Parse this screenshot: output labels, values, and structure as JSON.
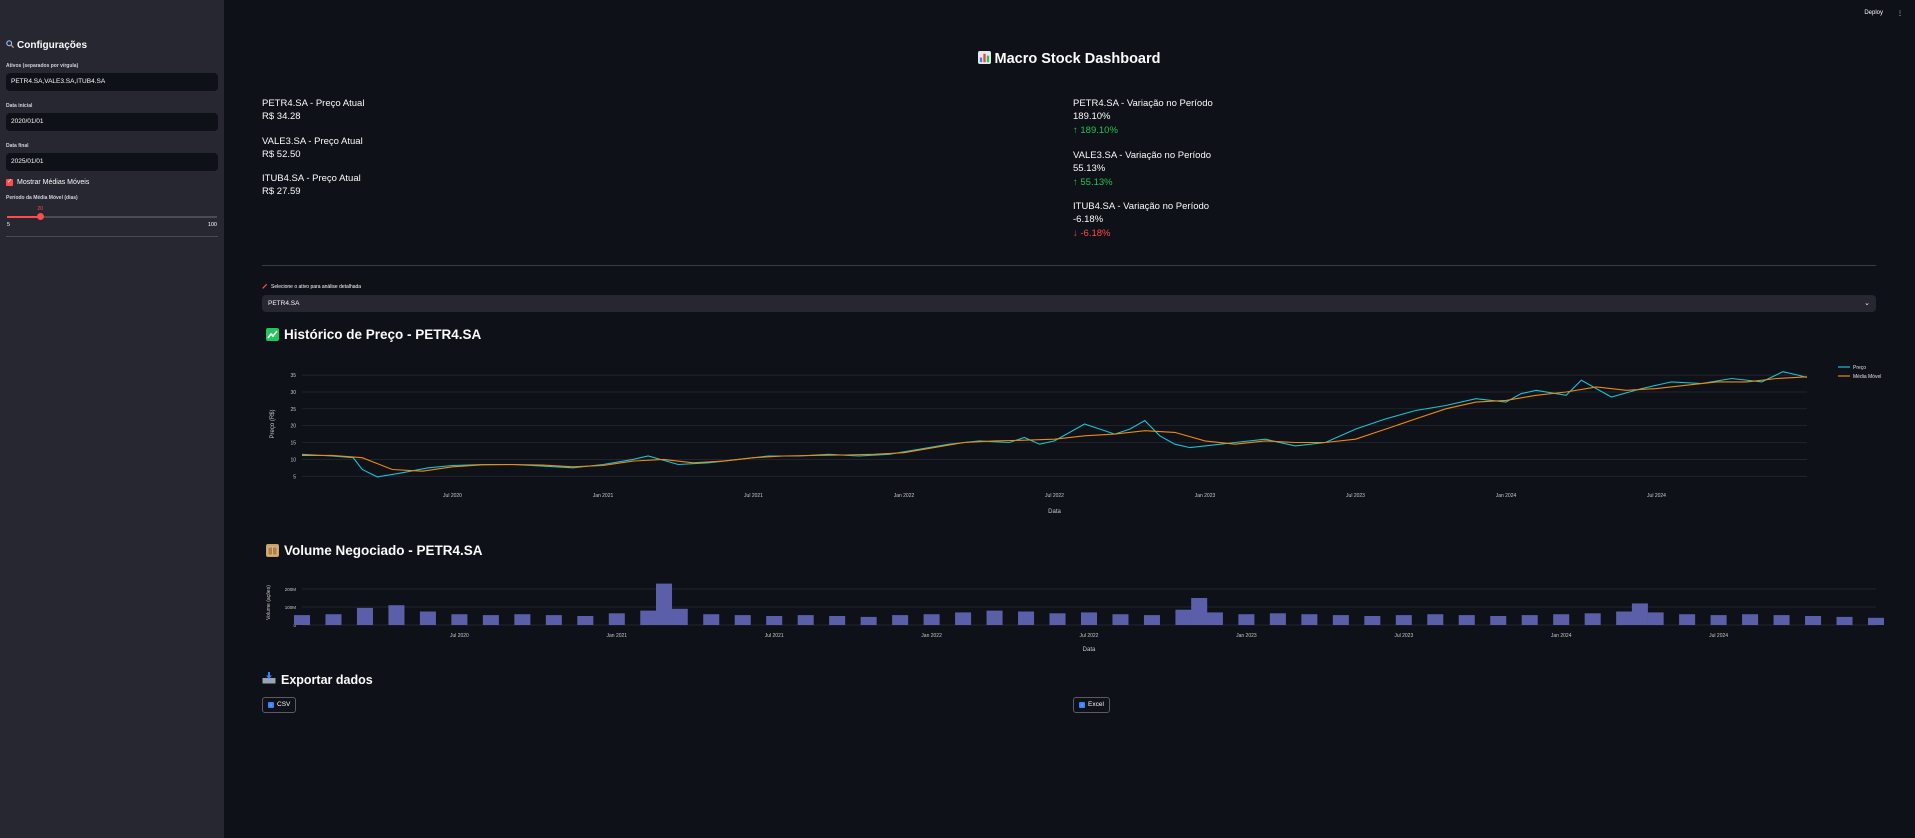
{
  "sidebar": {
    "title": "Configurações",
    "title_icon": "magnifier-icon",
    "assets_label": "Ativos (separados por vírgula)",
    "assets_value": "PETR4.SA,VALE3.SA,ITUB4.SA",
    "start_label": "Data inicial",
    "start_value": "2020/01/01",
    "end_label": "Data final",
    "end_value": "2025/01/01",
    "ma_checkbox_label": "Mostrar Médias Móveis",
    "ma_checkbox_checked": true,
    "period_label": "Período da Média Móvel (dias)",
    "slider_min": "5",
    "slider_max": "100",
    "slider_value": "20",
    "slider_value_num": 20
  },
  "topbar": {
    "deploy_label": "Deploy",
    "menu_icon": "kebab-menu-icon"
  },
  "page": {
    "title": "Macro Stock Dashboard",
    "title_icon": "bar-chart-icon"
  },
  "metrics_left": [
    {
      "label": "PETR4.SA - Preço Atual",
      "value": "R$ 34.28"
    },
    {
      "label": "VALE3.SA - Preço Atual",
      "value": "R$ 52.50"
    },
    {
      "label": "ITUB4.SA - Preço Atual",
      "value": "R$ 27.59"
    }
  ],
  "metrics_right": [
    {
      "label": "PETR4.SA - Variação no Período",
      "value": "189.10%",
      "delta": "↑ 189.10%",
      "direction": "up"
    },
    {
      "label": "VALE3.SA - Variação no Período",
      "value": "55.13%",
      "delta": "↑ 55.13%",
      "direction": "up"
    },
    {
      "label": "ITUB4.SA - Variação no Período",
      "value": "-6.18%",
      "delta": "↓ -6.18%",
      "direction": "down"
    }
  ],
  "select": {
    "label": "Selecione o ativo para análise detalhada",
    "value": "PETR4.SA",
    "icon": "pencil-icon"
  },
  "price_section": {
    "title": "Histórico de Preço - PETR4.SA",
    "icon": "chart-increasing-icon"
  },
  "volume_section": {
    "title": "Volume Negociado - PETR4.SA",
    "icon": "package-icon"
  },
  "export_section": {
    "title": "Exportar dados",
    "icon": "inbox-tray-icon",
    "csv_label": "CSV",
    "excel_label": "Excel"
  },
  "colors": {
    "price": "#19c3d4",
    "moving_average": "#f0890a",
    "volume": "#5b5ea8",
    "accent": "#ff4b4b",
    "positive": "#21c354"
  },
  "chart_data": [
    {
      "type": "line",
      "title": "",
      "xlabel": "Data",
      "ylabel": "Preço (R$)",
      "x_ticks": [
        "Jul 2020",
        "Jan 2021",
        "Jul 2021",
        "Jan 2022",
        "Jul 2022",
        "Jan 2023",
        "Jul 2023",
        "Jan 2024",
        "Jul 2024"
      ],
      "y_ticks": [
        5,
        10,
        15,
        20,
        25,
        30,
        35
      ],
      "ylim": [
        3,
        38
      ],
      "x_range": [
        2020.0,
        2025.0
      ],
      "legend_position": "right",
      "series": [
        {
          "name": "Preço",
          "x": [
            2020.0,
            2020.1,
            2020.17,
            2020.2,
            2020.25,
            2020.33,
            2020.42,
            2020.5,
            2020.6,
            2020.7,
            2020.8,
            2020.9,
            2021.0,
            2021.1,
            2021.15,
            2021.25,
            2021.35,
            2021.45,
            2021.55,
            2021.65,
            2021.75,
            2021.85,
            2021.95,
            2022.05,
            2022.15,
            2022.25,
            2022.35,
            2022.4,
            2022.45,
            2022.5,
            2022.6,
            2022.7,
            2022.75,
            2022.8,
            2022.85,
            2022.9,
            2022.95,
            2023.0,
            2023.1,
            2023.2,
            2023.3,
            2023.4,
            2023.5,
            2023.6,
            2023.7,
            2023.8,
            2023.9,
            2024.0,
            2024.05,
            2024.1,
            2024.2,
            2024.25,
            2024.35,
            2024.45,
            2024.55,
            2024.65,
            2024.75,
            2024.85,
            2024.92,
            2024.97,
            2025.0
          ],
          "values": [
            11.5,
            11.0,
            10.5,
            7.0,
            4.8,
            6.0,
            7.5,
            8.2,
            8.5,
            8.5,
            8.0,
            7.5,
            8.5,
            10.0,
            11.0,
            8.5,
            9.0,
            10.0,
            11.0,
            11.0,
            11.5,
            11.0,
            11.5,
            13.0,
            14.5,
            15.5,
            15.0,
            16.5,
            14.5,
            15.5,
            20.5,
            17.5,
            19.0,
            21.5,
            17.0,
            14.5,
            13.5,
            14.0,
            15.0,
            16.0,
            14.0,
            15.0,
            19.0,
            22.0,
            24.5,
            26.0,
            28.0,
            27.0,
            29.5,
            30.5,
            29.0,
            33.5,
            28.5,
            31.0,
            33.0,
            32.5,
            34.0,
            33.0,
            36.0,
            35.0,
            34.3
          ]
        },
        {
          "name": "Média Móvel",
          "x": [
            2020.0,
            2020.1,
            2020.2,
            2020.3,
            2020.4,
            2020.5,
            2020.6,
            2020.7,
            2020.8,
            2020.9,
            2021.0,
            2021.1,
            2021.2,
            2021.3,
            2021.4,
            2021.5,
            2021.6,
            2021.7,
            2021.8,
            2021.9,
            2022.0,
            2022.1,
            2022.2,
            2022.3,
            2022.4,
            2022.5,
            2022.6,
            2022.7,
            2022.8,
            2022.9,
            2023.0,
            2023.1,
            2023.2,
            2023.3,
            2023.4,
            2023.5,
            2023.6,
            2023.7,
            2023.8,
            2023.9,
            2024.0,
            2024.1,
            2024.2,
            2024.3,
            2024.4,
            2024.5,
            2024.6,
            2024.7,
            2024.8,
            2024.9,
            2025.0
          ],
          "values": [
            11.2,
            11.2,
            10.5,
            7.0,
            6.5,
            7.8,
            8.4,
            8.5,
            8.3,
            7.8,
            8.2,
            9.5,
            10.0,
            9.0,
            9.5,
            10.5,
            11.0,
            11.2,
            11.3,
            11.5,
            12.0,
            13.5,
            15.0,
            15.5,
            15.7,
            16.0,
            17.0,
            17.5,
            18.5,
            18.0,
            15.5,
            14.5,
            15.5,
            15.0,
            15.0,
            16.0,
            19.0,
            22.0,
            25.0,
            27.0,
            27.5,
            29.0,
            30.0,
            31.5,
            30.5,
            31.0,
            32.0,
            33.0,
            33.0,
            34.0,
            34.5
          ]
        }
      ]
    },
    {
      "type": "bar",
      "title": "",
      "xlabel": "Data",
      "ylabel": "Volume (ações)",
      "x_ticks": [
        "Jul 2020",
        "Jan 2021",
        "Jul 2021",
        "Jan 2022",
        "Jul 2022",
        "Jan 2023",
        "Jul 2023",
        "Jan 2024",
        "Jul 2024"
      ],
      "y_ticks": [
        "0",
        "100M",
        "200M"
      ],
      "ylim": [
        0,
        250
      ],
      "x_range": [
        2020.0,
        2025.0
      ],
      "series": [
        {
          "name": "Volume",
          "x": [
            2020.0,
            2020.1,
            2020.2,
            2020.3,
            2020.4,
            2020.5,
            2020.6,
            2020.7,
            2020.8,
            2020.9,
            2021.0,
            2021.1,
            2021.15,
            2021.2,
            2021.3,
            2021.4,
            2021.5,
            2021.6,
            2021.7,
            2021.8,
            2021.9,
            2022.0,
            2022.1,
            2022.2,
            2022.3,
            2022.4,
            2022.5,
            2022.6,
            2022.7,
            2022.8,
            2022.85,
            2022.9,
            2023.0,
            2023.1,
            2023.2,
            2023.3,
            2023.4,
            2023.5,
            2023.6,
            2023.7,
            2023.8,
            2023.9,
            2024.0,
            2024.1,
            2024.2,
            2024.25,
            2024.3,
            2024.4,
            2024.5,
            2024.6,
            2024.7,
            2024.8,
            2024.9,
            2025.0
          ],
          "values": [
            55,
            60,
            95,
            110,
            75,
            60,
            55,
            60,
            55,
            50,
            65,
            80,
            230,
            90,
            60,
            55,
            50,
            55,
            50,
            45,
            55,
            60,
            70,
            80,
            75,
            65,
            70,
            60,
            55,
            85,
            150,
            70,
            60,
            65,
            60,
            55,
            50,
            55,
            60,
            55,
            50,
            55,
            60,
            65,
            75,
            120,
            70,
            60,
            55,
            60,
            55,
            50,
            45,
            40
          ]
        }
      ]
    }
  ]
}
